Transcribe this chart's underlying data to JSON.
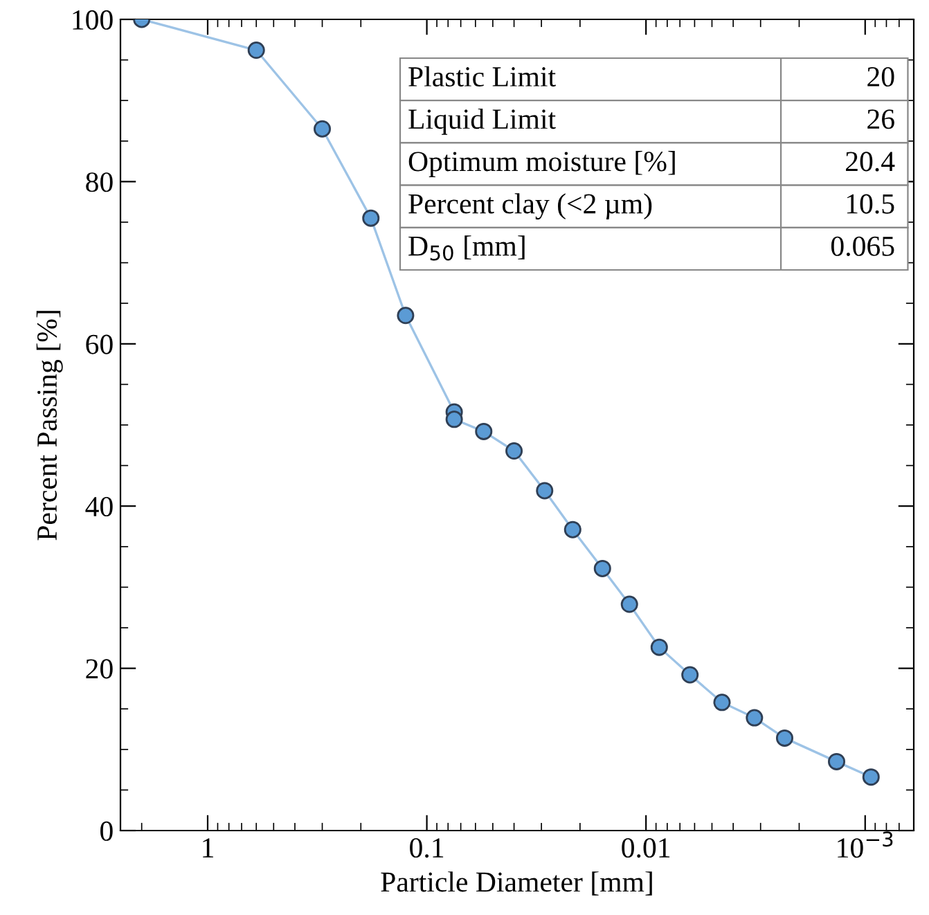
{
  "chart_data": {
    "type": "line",
    "xlabel": "Particle Diameter [mm]",
    "ylabel": "Percent Passing [%]",
    "log": "x",
    "xlim": [
      2.5,
      0.0006
    ],
    "ylim": [
      0,
      100
    ],
    "xticks": [
      1,
      0.1,
      0.01,
      {
        "value": 0.001,
        "label": "10$^{−3}$"
      }
    ],
    "yticks": [
      0,
      20,
      40,
      60,
      80,
      100
    ],
    "marker": "circle",
    "line_style": "solid",
    "grid": false,
    "series": [
      {
        "color": "#5b9bd5",
        "x": [
          2.0,
          0.6,
          0.3,
          0.18,
          0.125,
          0.075,
          0.075,
          0.055,
          0.04,
          0.029,
          0.0216,
          0.0158,
          0.0119,
          0.0087,
          0.0063,
          0.0045,
          0.0032,
          0.00233,
          0.00135,
          0.00094
        ],
        "values": [
          100,
          96.2,
          86.5,
          75.5,
          63.5,
          51.6,
          50.7,
          49.2,
          46.8,
          41.9,
          37.1,
          32.3,
          27.9,
          22.6,
          19.2,
          15.8,
          13.9,
          11.4,
          8.5,
          6.6
        ]
      }
    ],
    "annotations": [
      "Plastic Limit",
      "20",
      "Liquid Limit",
      "26",
      "Optimum moisture [%]",
      "20.4",
      "Percent clay (<2 µm)",
      "10.5",
      "D$_{50}$ [mm]",
      "0.065"
    ]
  }
}
